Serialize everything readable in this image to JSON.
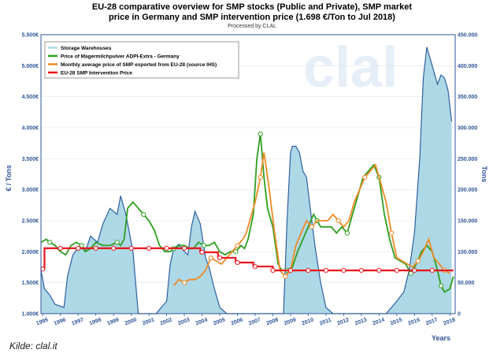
{
  "page": {
    "title_line1": "EU-28 comparative overview for SMP stocks (Public and Private), SMP market",
    "title_line2": "price in Germany and SMP intervention price (1.698 €/Ton to Jul 2018)",
    "subtitle": "Processed by CLAL",
    "source": "Kilde: clal.it"
  },
  "chart_data": {
    "type": "line",
    "watermark": "clal",
    "xlabel": "Years",
    "ylabel_left": "€ / Tons",
    "ylabel_right": "Tons",
    "xlim": [
      1995.5,
      2018.9
    ],
    "ylim_left": [
      1000,
      5500
    ],
    "ylim_right": [
      0,
      450000
    ],
    "yticks_left": [
      "1.000€",
      "1.500€",
      "2.000€",
      "2.500€",
      "3.000€",
      "3.500€",
      "4.000€",
      "4.500€",
      "5.000€",
      "5.500€"
    ],
    "yticks_left_values": [
      1000,
      1500,
      2000,
      2500,
      3000,
      3500,
      4000,
      4500,
      5000,
      5500
    ],
    "yticks_right": [
      "0",
      "50.000",
      "100.000",
      "150.000",
      "200.000",
      "250.000",
      "300.000",
      "350.000",
      "400.000",
      "450.000"
    ],
    "yticks_right_values": [
      0,
      50000,
      100000,
      150000,
      200000,
      250000,
      300000,
      350000,
      400000,
      450000
    ],
    "xticks": [
      "1995",
      "1996",
      "1997",
      "1998",
      "1999",
      "2000",
      "2001",
      "2002",
      "2003",
      "2004",
      "2005",
      "2006",
      "2007",
      "2008",
      "2009",
      "2010",
      "2011",
      "2012",
      "2013",
      "2014",
      "2015",
      "2016",
      "2017",
      "2018"
    ],
    "xticks_values": [
      1995.6,
      1996.6,
      1997.6,
      1998.6,
      1999.6,
      2000.6,
      2001.6,
      2002.6,
      2003.6,
      2004.6,
      2005.6,
      2006.6,
      2007.6,
      2008.6,
      2009.6,
      2010.6,
      2011.6,
      2012.6,
      2013.6,
      2014.6,
      2015.6,
      2016.6,
      2017.6,
      2018.6
    ],
    "legend": [
      "Storage Warehouses",
      "Price of Magermilchpulver ADPI-Extra - Germany",
      "Monthly average price of SMP exported from EU-28 (source IHS)",
      "EU-28 SMP Intervention Price"
    ],
    "series": [
      {
        "name": "Storage Warehouses",
        "axis": "right",
        "color": "#add8e6",
        "stroke": "#2f5fa0",
        "x": [
          1995.5,
          1995.7,
          1996.0,
          1996.3,
          1996.8,
          1997.0,
          1997.3,
          1997.7,
          1998.0,
          1998.3,
          1998.7,
          1999.0,
          1999.4,
          1999.8,
          2000.0,
          2000.3,
          2000.7,
          2001.0,
          2001.5,
          2002.0,
          2002.6,
          2002.8,
          2003.0,
          2003.3,
          2003.6,
          2003.8,
          2004.0,
          2004.2,
          2004.5,
          2004.8,
          2005.0,
          2005.3,
          2005.6,
          2006.0,
          2006.5,
          2006.9,
          2007.5,
          2008.0,
          2008.5,
          2009.2,
          2009.4,
          2009.6,
          2009.7,
          2009.9,
          2010.1,
          2010.3,
          2010.5,
          2010.8,
          2011.0,
          2011.3,
          2011.6,
          2012.0,
          2012.5,
          2013.0,
          2014.0,
          2015.0,
          2015.3,
          2015.6,
          2016.0,
          2016.3,
          2016.6,
          2016.9,
          2017.1,
          2017.3,
          2017.6,
          2017.9,
          2018.1,
          2018.3,
          2018.5,
          2018.7
        ],
        "values": [
          70000,
          40000,
          30000,
          15000,
          10000,
          60000,
          95000,
          110000,
          100000,
          125000,
          115000,
          145000,
          170000,
          160000,
          190000,
          160000,
          100000,
          0,
          0,
          0,
          20000,
          80000,
          105000,
          112000,
          100000,
          95000,
          140000,
          165000,
          145000,
          90000,
          75000,
          40000,
          10000,
          0,
          0,
          0,
          0,
          0,
          0,
          0,
          150000,
          260000,
          270000,
          270000,
          260000,
          230000,
          220000,
          150000,
          105000,
          50000,
          10000,
          0,
          0,
          0,
          0,
          0,
          10000,
          20000,
          35000,
          70000,
          130000,
          250000,
          380000,
          430000,
          400000,
          370000,
          385000,
          380000,
          360000,
          310000
        ]
      },
      {
        "name": "Price of Magermilchpulver ADPI-Extra - Germany",
        "axis": "left",
        "color": "#2e9e1f",
        "x": [
          1995.5,
          1995.8,
          1996.0,
          1996.3,
          1996.6,
          1996.9,
          1997.2,
          1997.5,
          1997.8,
          1998.0,
          1998.3,
          1998.6,
          1999.0,
          1999.4,
          1999.8,
          2000.0,
          2000.2,
          2000.4,
          2000.7,
          2001.0,
          2001.3,
          2001.6,
          2001.9,
          2002.2,
          2002.5,
          2002.8,
          2003.0,
          2003.3,
          2003.6,
          2003.9,
          2004.1,
          2004.4,
          2004.7,
          2005.0,
          2005.3,
          2005.6,
          2005.9,
          2006.2,
          2006.5,
          2006.8,
          2007.0,
          2007.2,
          2007.5,
          2007.7,
          2007.9,
          2008.1,
          2008.3,
          2008.6,
          2008.9,
          2009.1,
          2009.4,
          2009.7,
          2010.0,
          2010.3,
          2010.6,
          2010.9,
          2011.1,
          2011.3,
          2011.6,
          2011.9,
          2012.2,
          2012.5,
          2012.8,
          2013.1,
          2013.4,
          2013.7,
          2014.0,
          2014.3,
          2014.6,
          2014.9,
          2015.2,
          2015.5,
          2015.8,
          2016.1,
          2016.4,
          2016.7,
          2017.0,
          2017.3,
          2017.6,
          2017.9,
          2018.1,
          2018.3,
          2018.6,
          2018.8
        ],
        "values": [
          2150,
          2200,
          2150,
          2100,
          2000,
          1950,
          2100,
          2150,
          2100,
          2000,
          2050,
          2150,
          2100,
          2100,
          2150,
          2100,
          2200,
          2700,
          2800,
          2700,
          2600,
          2500,
          2350,
          2100,
          2000,
          2000,
          2050,
          2100,
          2100,
          2050,
          2050,
          2150,
          2100,
          2100,
          2150,
          2000,
          1950,
          2000,
          2000,
          2100,
          2050,
          2200,
          2600,
          3500,
          3900,
          3200,
          2700,
          2400,
          1800,
          1700,
          1700,
          1750,
          2000,
          2200,
          2400,
          2600,
          2500,
          2400,
          2400,
          2400,
          2300,
          2400,
          2300,
          2600,
          2900,
          3200,
          3300,
          3400,
          3200,
          2600,
          2200,
          1900,
          1850,
          1800,
          1650,
          1800,
          2000,
          2100,
          2000,
          1700,
          1450,
          1350,
          1400,
          1600
        ]
      },
      {
        "name": "Monthly average price of SMP exported from EU-28 (source IHS)",
        "axis": "left",
        "color": "#f08a24",
        "x": [
          2003.0,
          2003.3,
          2003.6,
          2003.9,
          2004.2,
          2004.5,
          2004.8,
          2005.1,
          2005.4,
          2005.7,
          2006.0,
          2006.3,
          2006.6,
          2006.9,
          2007.1,
          2007.3,
          2007.6,
          2007.9,
          2008.1,
          2008.4,
          2008.7,
          2009.0,
          2009.3,
          2009.6,
          2009.9,
          2010.2,
          2010.5,
          2010.8,
          2011.1,
          2011.4,
          2011.7,
          2012.0,
          2012.3,
          2012.6,
          2012.9,
          2013.2,
          2013.5,
          2013.8,
          2014.1,
          2014.4,
          2014.7,
          2015.0,
          2015.3,
          2015.6,
          2015.9,
          2016.2,
          2016.5,
          2016.8,
          2017.1,
          2017.4,
          2017.7,
          2018.0,
          2018.3,
          2018.6
        ],
        "values": [
          1450,
          1550,
          1500,
          1550,
          1550,
          1600,
          1700,
          1900,
          1850,
          1800,
          1900,
          2000,
          2100,
          2200,
          2300,
          2500,
          2800,
          3200,
          3600,
          3000,
          2300,
          1700,
          1600,
          1700,
          2100,
          2300,
          2500,
          2400,
          2500,
          2500,
          2500,
          2600,
          2500,
          2400,
          2500,
          2800,
          3000,
          3200,
          3300,
          3400,
          3100,
          2800,
          2300,
          1900,
          1850,
          1800,
          1750,
          1850,
          2000,
          2200,
          1900,
          1800,
          1700,
          1650
        ]
      },
      {
        "name": "EU-28 SMP Intervention Price",
        "axis": "left",
        "color": "#e8141b",
        "x": [
          1995.5,
          1995.7,
          1995.7,
          2004.5,
          2004.5,
          2005.5,
          2005.5,
          2006.5,
          2006.5,
          2007.5,
          2007.5,
          2008.6,
          2008.6,
          2018.8
        ],
        "values": [
          1720,
          1720,
          2055,
          2055,
          1990,
          1990,
          1900,
          1900,
          1825,
          1825,
          1760,
          1760,
          1698,
          1698
        ]
      }
    ]
  }
}
